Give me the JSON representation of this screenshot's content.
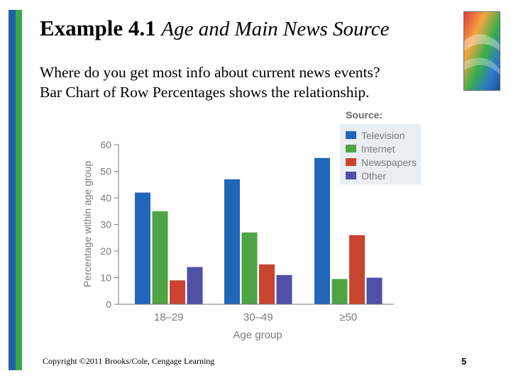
{
  "slide": {
    "title_main": "Example 4.1",
    "title_sub": "Age and Main News Source",
    "subtitle_line1": "Where do you get most info about current news events?",
    "subtitle_line2": "Bar Chart of Row Percentages shows the relationship.",
    "footer": "Copyright ©2011 Brooks/Cole, Cengage Learning",
    "page_number": "5"
  },
  "chart_data": {
    "type": "bar",
    "title": "",
    "xlabel": "Age group",
    "ylabel": "Percentage within age group",
    "categories": [
      "18–29",
      "30–49",
      "≥50"
    ],
    "ylim": [
      0,
      60
    ],
    "yticks": [
      "0",
      "10",
      "20",
      "30",
      "40",
      "50",
      "60"
    ],
    "legend_title": "Source:",
    "legend_position": "top-right",
    "grid": false,
    "series": [
      {
        "name": "Television",
        "color": "#2166b8",
        "values": [
          42,
          47,
          55
        ]
      },
      {
        "name": "Internet",
        "color": "#4fa444",
        "values": [
          35,
          27,
          9.5
        ]
      },
      {
        "name": "Newspapers",
        "color": "#c8442e",
        "values": [
          9,
          15,
          26
        ]
      },
      {
        "name": "Other",
        "color": "#5050a8",
        "values": [
          14,
          11,
          10
        ]
      }
    ]
  }
}
